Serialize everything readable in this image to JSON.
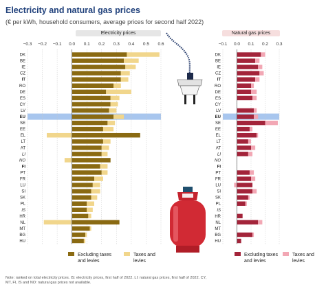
{
  "title": "Electricity and natural gas prices",
  "subtitle": "(€ per kWh, household consumers, average prices for second half 2022)",
  "note": "Note: ranked on total electricity prices. IS: electricity prices, first half of 2022. LI: natural gas prices, first half of 2022. CY, MT, FI, IS and NO: natural gas prices not available.",
  "colors": {
    "elec_excl": "#8a6a12",
    "elec_tax": "#f1d68c",
    "gas_excl": "#a3243a",
    "gas_tax": "#f2a7b4",
    "eu_highlight": "#a8c6ee"
  },
  "legend": {
    "elec_excl": "Excluding taxes and levies",
    "elec_tax": "Taxes and levies",
    "gas_excl": "Excluding taxes and levies",
    "gas_tax": "Taxes and levies"
  },
  "chart_data": [
    {
      "type": "bar",
      "title": "Electricity prices",
      "orientation": "horizontal",
      "stacked": true,
      "xlim": [
        -0.3,
        0.6
      ],
      "xticks": [
        -0.3,
        -0.2,
        -0.1,
        0.0,
        0.1,
        0.2,
        0.3,
        0.4,
        0.5,
        0.6
      ],
      "xtick_labels": [
        "−0.3",
        "−0.2",
        "−0.1",
        "0.0",
        "0.1",
        "0.2",
        "0.3",
        "0.4",
        "0.5",
        "0.6"
      ],
      "categories": [
        "DK",
        "BE",
        "IE",
        "CZ",
        "IT",
        "RO",
        "DE",
        "ES",
        "CY",
        "LV",
        "EU",
        "SE",
        "EE",
        "EL",
        "LT",
        "AT",
        "LI",
        "NO",
        "FI",
        "PT",
        "FR",
        "LU",
        "SI",
        "SK",
        "PL",
        "IS",
        "HR",
        "NL",
        "MT",
        "BG",
        "HU"
      ],
      "series": [
        {
          "name": "Excluding taxes and levies",
          "values": [
            0.37,
            0.35,
            0.36,
            0.33,
            0.33,
            0.28,
            0.23,
            0.26,
            0.26,
            0.25,
            0.28,
            0.24,
            0.21,
            0.46,
            0.21,
            0.2,
            0.2,
            0.26,
            0.19,
            0.2,
            0.15,
            0.14,
            0.13,
            0.13,
            0.1,
            0.1,
            0.11,
            0.32,
            0.12,
            0.09,
            0.08
          ]
        },
        {
          "name": "Taxes and levies",
          "values": [
            0.22,
            0.1,
            0.07,
            0.06,
            0.05,
            0.05,
            0.17,
            0.06,
            0.05,
            0.05,
            0.07,
            0.05,
            0.07,
            -0.17,
            0.05,
            0.05,
            0.04,
            -0.05,
            0.05,
            0.04,
            0.06,
            0.05,
            0.06,
            0.04,
            0.05,
            0.04,
            0.02,
            -0.19,
            0.01,
            0.01,
            0.01
          ]
        }
      ]
    },
    {
      "type": "bar",
      "title": "Natural gas prices",
      "orientation": "horizontal",
      "stacked": true,
      "xlim": [
        -0.1,
        0.3
      ],
      "xticks": [
        -0.1,
        0.0,
        0.1,
        0.2,
        0.3
      ],
      "xtick_labels": [
        "−0.1",
        "0.0",
        "0.1",
        "0.2",
        "0.3"
      ],
      "categories": [
        "DK",
        "BE",
        "IE",
        "CZ",
        "IT",
        "RO",
        "DE",
        "ES",
        "CY",
        "LV",
        "EU",
        "SE",
        "EE",
        "EL",
        "LT",
        "AT",
        "LI",
        "NO",
        "FI",
        "PT",
        "FR",
        "LU",
        "SI",
        "SK",
        "PL",
        "IS",
        "HR",
        "NL",
        "MT",
        "BG",
        "HU"
      ],
      "series": [
        {
          "name": "Excluding taxes and levies",
          "values": [
            0.17,
            0.13,
            0.15,
            0.16,
            0.13,
            0.1,
            0.1,
            0.11,
            null,
            0.12,
            0.12,
            0.2,
            0.09,
            0.14,
            0.08,
            0.1,
            0.08,
            null,
            null,
            0.09,
            0.1,
            0.11,
            0.11,
            0.08,
            0.06,
            null,
            0.04,
            0.15,
            null,
            0.11,
            0.03
          ]
        },
        {
          "name": "Taxes and levies",
          "values": [
            0.03,
            0.03,
            0.03,
            0.03,
            0.03,
            0.02,
            0.04,
            0.03,
            null,
            0.02,
            0.03,
            0.09,
            0.02,
            0.01,
            0.02,
            0.03,
            0.03,
            null,
            null,
            0.03,
            0.03,
            -0.02,
            0.03,
            0.01,
            0.01,
            null,
            0.0,
            0.03,
            null,
            0.01,
            0.0
          ]
        }
      ]
    }
  ]
}
